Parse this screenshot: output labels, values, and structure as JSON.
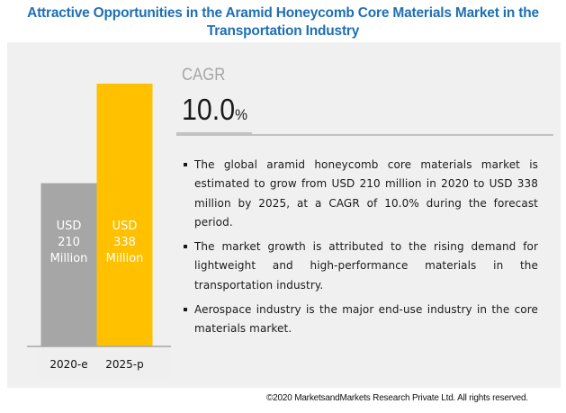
{
  "title": "Attractive Opportunities in the Aramid Honeycomb Core Materials Market in the Transportation Industry",
  "chart_data": {
    "type": "bar",
    "title": "Attractive Opportunities in the Aramid Honeycomb Core Materials Market in the Transportation Industry",
    "categories": [
      "2020-e",
      "2025-p"
    ],
    "values": [
      210,
      338
    ],
    "unit": "USD Million",
    "bar_labels": [
      [
        "USD",
        "210",
        "Million"
      ],
      [
        "USD",
        "338",
        "Million"
      ]
    ],
    "colors": [
      "#a6a6a6",
      "#ffc000"
    ],
    "xlabel": "",
    "ylabel": "",
    "ylim": [
      0,
      375
    ],
    "grid": false,
    "legend": "none"
  },
  "cagr": {
    "label": "CAGR",
    "value": "10.0",
    "unit": "%"
  },
  "bullets": [
    "The global aramid honeycomb core materials market is estimated to grow from USD 210 million in 2020 to USD 338 million by 2025, at a CAGR of 10.0% during the forecast period.",
    "The market growth is attributed to the rising demand for lightweight and high-performance materials in the transportation industry.",
    "Aerospace industry is the major end-use industry in the core materials market."
  ],
  "footer": "©2020 MarketsandMarkets  Research Private Ltd. All rights reserved.",
  "colors": {
    "title": "#1f6fb4",
    "panel": "#f0f0f0",
    "bar_2020": "#a6a6a6",
    "bar_2025": "#ffc000"
  }
}
